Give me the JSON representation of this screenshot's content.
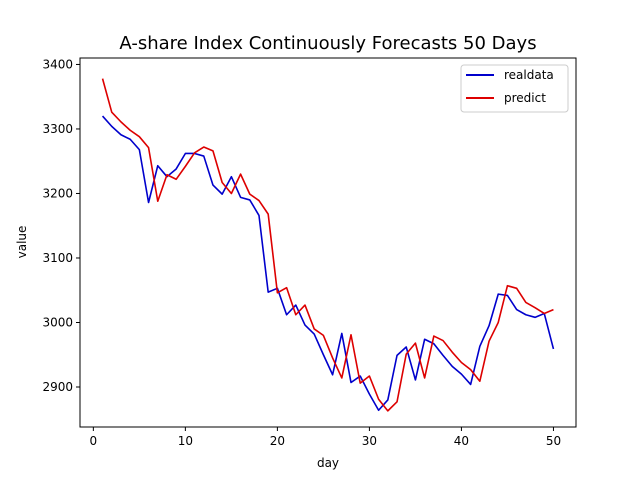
{
  "chart_data": {
    "type": "line",
    "title": "A-share Index Continuously Forecasts 50 Days",
    "xlabel": "day",
    "ylabel": "value",
    "xlim": [
      -1.45,
      52.45
    ],
    "ylim": [
      2838,
      3410
    ],
    "xticks": [
      0,
      10,
      20,
      30,
      40,
      50
    ],
    "yticks": [
      2900,
      3000,
      3100,
      3200,
      3300,
      3400
    ],
    "grid": false,
    "legend_position": "top-right",
    "x": [
      1,
      2,
      3,
      4,
      5,
      6,
      7,
      8,
      9,
      10,
      11,
      12,
      13,
      14,
      15,
      16,
      17,
      18,
      19,
      20,
      21,
      22,
      23,
      24,
      25,
      26,
      27,
      28,
      29,
      30,
      31,
      32,
      33,
      34,
      35,
      36,
      37,
      38,
      39,
      40,
      41,
      42,
      43,
      44,
      45,
      46,
      47,
      48,
      49,
      50
    ],
    "series": [
      {
        "name": "realdata",
        "color": "#0000cc",
        "values": [
          3320,
          3304,
          3291,
          3284,
          3268,
          3186,
          3243,
          3226,
          3238,
          3262,
          3262,
          3258,
          3213,
          3199,
          3226,
          3194,
          3190,
          3166,
          3047,
          3053,
          3012,
          3027,
          2996,
          2982,
          2950,
          2919,
          2983,
          2907,
          2917,
          2889,
          2864,
          2880,
          2949,
          2962,
          2911,
          2974,
          2967,
          2949,
          2932,
          2920,
          2904,
          2963,
          2995,
          3044,
          3042,
          3020,
          3012,
          3008,
          3014,
          2959
        ]
      },
      {
        "name": "predict",
        "color": "#dd0000",
        "values": [
          3378,
          3326,
          3311,
          3298,
          3288,
          3271,
          3188,
          3229,
          3222,
          3242,
          3263,
          3272,
          3266,
          3217,
          3200,
          3230,
          3199,
          3189,
          3168,
          3046,
          3054,
          3012,
          3027,
          2990,
          2980,
          2945,
          2914,
          2981,
          2906,
          2917,
          2881,
          2863,
          2877,
          2951,
          2968,
          2914,
          2979,
          2972,
          2954,
          2938,
          2927,
          2909,
          2971,
          3000,
          3057,
          3053,
          3031,
          3023,
          3014,
          3020
        ]
      }
    ]
  }
}
